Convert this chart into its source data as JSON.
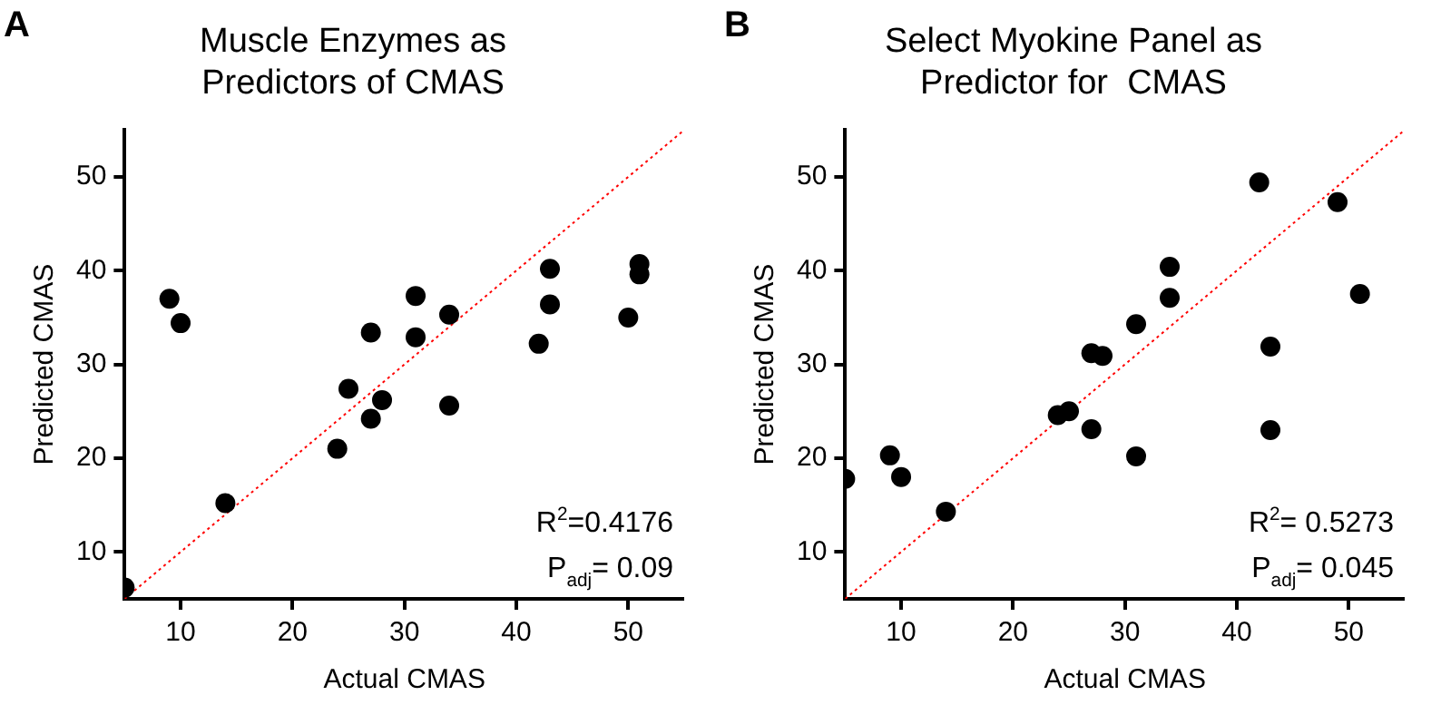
{
  "chart_data": [
    {
      "type": "scatter",
      "title": "Muscle Enzymes as\nPredictors of CMAS",
      "xlabel": "Actual CMAS",
      "ylabel": "Predicted CMAS",
      "xlim": [
        5,
        55
      ],
      "xticks": [
        10,
        20,
        30,
        40,
        50
      ],
      "ylim": [
        5,
        55
      ],
      "yticks": [
        10,
        20,
        30,
        40,
        50
      ],
      "grid": false,
      "legend": false,
      "marker": "circle",
      "series": [
        {
          "color": "#000000",
          "x": [
            5,
            9,
            10,
            14,
            24,
            25,
            27,
            27,
            28,
            31,
            31,
            34,
            34,
            42,
            43,
            43,
            50,
            51,
            51
          ],
          "values": [
            6.2,
            37,
            34.4,
            15.2,
            21,
            27.4,
            33.4,
            24.2,
            26.2,
            37.3,
            32.9,
            35.3,
            25.6,
            32.2,
            40.2,
            36.4,
            35,
            40.7,
            39.6
          ]
        },
        {
          "type": "line",
          "color": "#ff0000",
          "line_style": "dotted",
          "marker": "none",
          "x": [
            5,
            55
          ],
          "values": [
            5,
            55
          ]
        }
      ],
      "annotations": [
        "A",
        "R$^{2}$=0.4176",
        "P$_{adj}$= 0.09"
      ]
    },
    {
      "type": "scatter",
      "title": "Select Myokine Panel as\nPredictor for  CMAS",
      "xlabel": "Actual CMAS",
      "ylabel": "Predicted CMAS",
      "xlim": [
        5,
        55
      ],
      "xticks": [
        10,
        20,
        30,
        40,
        50
      ],
      "ylim": [
        5,
        55
      ],
      "yticks": [
        10,
        20,
        30,
        40,
        50
      ],
      "grid": false,
      "legend": false,
      "marker": "circle",
      "series": [
        {
          "color": "#000000",
          "x": [
            5,
            9,
            10,
            14,
            24,
            25,
            27,
            28,
            27,
            31,
            31,
            34,
            34,
            42,
            43,
            43,
            49,
            51
          ],
          "values": [
            17.8,
            20.3,
            18,
            14.3,
            24.6,
            25,
            31.2,
            30.9,
            23.1,
            34.3,
            20.2,
            40.4,
            37.1,
            49.4,
            31.9,
            23,
            47.3,
            37.5
          ]
        },
        {
          "type": "line",
          "color": "#ff0000",
          "line_style": "dotted",
          "marker": "none",
          "x": [
            5,
            55
          ],
          "values": [
            5,
            55
          ]
        }
      ],
      "annotations": [
        "B",
        "R$^{2}$= 0.5273",
        "P$_{adj}$= 0.045"
      ]
    }
  ]
}
